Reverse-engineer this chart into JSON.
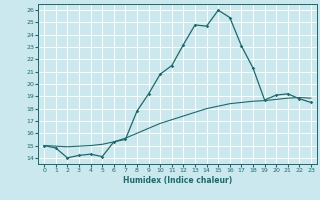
{
  "xlabel": "Humidex (Indice chaleur)",
  "ylabel": "",
  "bg_color": "#cbe8ef",
  "grid_color": "#ffffff",
  "line_color": "#1a6b6b",
  "xlim": [
    -0.5,
    23.5
  ],
  "ylim": [
    13.5,
    26.5
  ],
  "xticks": [
    0,
    1,
    2,
    3,
    4,
    5,
    6,
    7,
    8,
    9,
    10,
    11,
    12,
    13,
    14,
    15,
    16,
    17,
    18,
    19,
    20,
    21,
    22,
    23
  ],
  "yticks": [
    14,
    15,
    16,
    17,
    18,
    19,
    20,
    21,
    22,
    23,
    24,
    25,
    26
  ],
  "curve1_x": [
    0,
    1,
    2,
    3,
    4,
    5,
    6,
    7,
    8,
    9,
    10,
    11,
    12,
    13,
    14,
    15,
    16,
    17,
    18,
    19,
    20,
    21,
    22,
    23
  ],
  "curve1_y": [
    15.0,
    14.8,
    14.0,
    14.2,
    14.3,
    14.1,
    15.3,
    15.5,
    17.8,
    19.2,
    20.8,
    21.5,
    23.2,
    24.8,
    24.7,
    26.0,
    25.4,
    23.1,
    21.3,
    18.7,
    19.1,
    19.2,
    18.8,
    18.5
  ],
  "curve2_x": [
    0,
    1,
    2,
    3,
    4,
    5,
    6,
    7,
    8,
    9,
    10,
    11,
    12,
    13,
    14,
    15,
    16,
    17,
    18,
    19,
    20,
    21,
    22,
    23
  ],
  "curve2_y": [
    15.0,
    14.95,
    14.9,
    14.95,
    15.0,
    15.1,
    15.3,
    15.6,
    16.0,
    16.4,
    16.8,
    17.1,
    17.4,
    17.7,
    18.0,
    18.2,
    18.4,
    18.5,
    18.6,
    18.65,
    18.75,
    18.85,
    18.9,
    18.85
  ]
}
